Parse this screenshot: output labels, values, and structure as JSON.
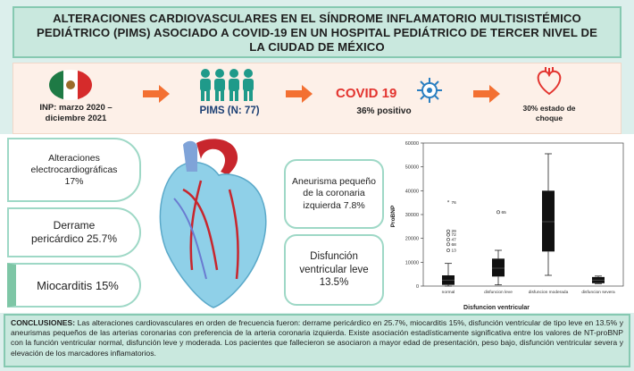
{
  "title": {
    "line1": "ALTERACIONES CARDIOVASCULARES EN EL SÍNDROME INFLAMATORIO MULTISISTÉMICO",
    "line2": "PEDIÁTRICO (PIMS) ASOCIADO A COVID-19 EN UN HOSPITAL PEDIÁTRICO DE TERCER NIVEL DE",
    "line3": "LA CIUDAD DE MÉXICO"
  },
  "flow": {
    "inp_line1": "INP: marzo 2020 –",
    "inp_line2": "diciembre 2021",
    "pims": "PIMS (N: 77)",
    "covid_title": "COVID 19",
    "covid_sub": "36% positivo",
    "shock_line1": "30% estado de",
    "shock_line2": "choque"
  },
  "findings_left": [
    {
      "line1": "Alteraciones",
      "line2": "electrocardiográficas",
      "line3": "17%"
    },
    {
      "line1": "Derrame",
      "line2": "pericárdico 25.7%"
    },
    {
      "line1": "Miocarditis 15%"
    }
  ],
  "findings_right": [
    {
      "line1": "Aneurisma pequeño",
      "line2": "de la coronaria",
      "line3": "izquierda 7.8%"
    },
    {
      "line1": "Disfunción",
      "line2": "ventricular leve",
      "line3": "13.5%"
    }
  ],
  "chart_data": {
    "type": "boxplot",
    "xlabel": "Disfuncion ventricular",
    "ylabel": "ProBNP",
    "ylim": [
      0,
      60000
    ],
    "yticks": [
      "0",
      "10000",
      "20000",
      "30000",
      "40000",
      "50000",
      "60000"
    ],
    "categories": [
      "normal",
      "disfuncion leve",
      "disfuncion moderada",
      "disfuncion severa"
    ],
    "boxes": [
      {
        "category": "normal",
        "min": 0,
        "q1": 500,
        "median": 2500,
        "q3": 4500,
        "max": 9500
      },
      {
        "category": "disfuncion leve",
        "min": 500,
        "q1": 4000,
        "median": 7500,
        "q3": 11500,
        "max": 15000
      },
      {
        "category": "disfuncion moderada",
        "min": 4500,
        "q1": 14500,
        "median": 27000,
        "q3": 40000,
        "max": 55500
      },
      {
        "category": "disfuncion severa",
        "min": 1000,
        "q1": 1200,
        "median": 2500,
        "q3": 3800,
        "max": 4200
      }
    ],
    "outliers": [
      {
        "category": "normal",
        "value": 35000,
        "label": "76",
        "marker": "star"
      },
      {
        "category": "normal",
        "value": 23000,
        "label": "29",
        "marker": "circle"
      },
      {
        "category": "normal",
        "value": 21500,
        "label": "72",
        "marker": "circle"
      },
      {
        "category": "normal",
        "value": 19500,
        "label": "47",
        "marker": "circle"
      },
      {
        "category": "normal",
        "value": 17500,
        "label": "68",
        "marker": "circle"
      },
      {
        "category": "normal",
        "value": 15000,
        "label": "13",
        "marker": "circle"
      },
      {
        "category": "disfuncion leve",
        "value": 31000,
        "label": "65",
        "marker": "circle"
      }
    ]
  },
  "conclusions": {
    "label": "CONCLUSIONES:",
    "text": " Las alteraciones cardiovasculares en orden de frecuencia fueron:  derrame pericárdico en 25.7%, miocarditis 15%, disfunción ventricular de tipo leve en 13.5% y aneurismas pequeños de las arterias coronarias con preferencia de la arteria coronaria izquierda. Existe asociación estadísticamente significativa entre los valores de NT-proBNP con la función ventricular normal, disfunción leve y moderada. Los pacientes que fallecieron se asociaron a mayor edad de presentación, peso bajo, disfunción ventricular severa y elevación de los marcadores inflamatorios."
  },
  "colors": {
    "teal_border": "#86c9b1",
    "teal_fill": "#c9e8de",
    "orange": "#f37032",
    "red": "#e3342f",
    "people": "#1f9a8a"
  },
  "icons": [
    "mexico-flag-icon",
    "arrow-right-icon",
    "people-group-icon",
    "virus-icon",
    "heart-icon",
    "heart-illustration"
  ]
}
